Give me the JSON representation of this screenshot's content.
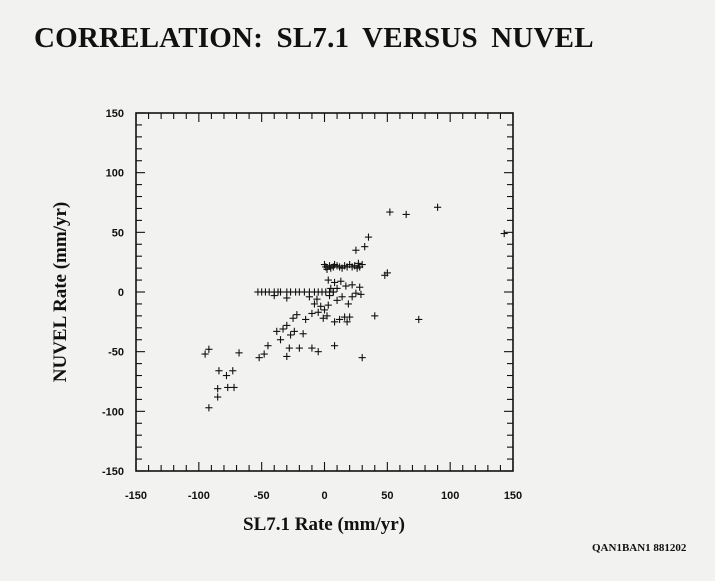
{
  "figure": {
    "title": "CORRELATION:  SL7.1  VERSUS  NUVEL",
    "code": "QAN1BAN1 881202"
  },
  "chart_data": {
    "type": "scatter",
    "title": "CORRELATION:  SL7.1  VERSUS  NUVEL",
    "xlabel": "SL7.1 Rate (mm/yr)",
    "ylabel": "NUVEL Rate (mm/yr)",
    "xlim": [
      -150,
      150
    ],
    "ylim": [
      -150,
      150
    ],
    "xticks": [
      -150,
      -100,
      -50,
      0,
      50,
      100,
      150
    ],
    "yticks": [
      -150,
      -100,
      -50,
      0,
      50,
      100,
      150
    ],
    "xtick_labels": [
      "-150",
      "-100",
      "-50",
      "0",
      "50",
      "100",
      "150"
    ],
    "ytick_labels": [
      "-150",
      "-100",
      "-50",
      "0",
      "50",
      "100",
      "150"
    ],
    "minor_tick_step": 10,
    "grid": false,
    "marker": "plus",
    "color": "#111111",
    "points": [
      [
        -92,
        -97
      ],
      [
        -85,
        -88
      ],
      [
        -85,
        -81
      ],
      [
        -77,
        -80
      ],
      [
        -72,
        -80
      ],
      [
        -78,
        -70
      ],
      [
        -73,
        -66
      ],
      [
        -84,
        -66
      ],
      [
        -95,
        -52
      ],
      [
        -92,
        -48
      ],
      [
        -68,
        -51
      ],
      [
        -48,
        -52
      ],
      [
        -45,
        -45
      ],
      [
        -52,
        -55
      ],
      [
        -53,
        0
      ],
      [
        -50,
        0
      ],
      [
        -47,
        0
      ],
      [
        -44,
        0
      ],
      [
        -40,
        0
      ],
      [
        -37,
        0
      ],
      [
        -35,
        0
      ],
      [
        -30,
        0
      ],
      [
        -27,
        0
      ],
      [
        -23,
        0
      ],
      [
        -20,
        0
      ],
      [
        -16,
        0
      ],
      [
        -12,
        0
      ],
      [
        -8,
        0
      ],
      [
        -5,
        0
      ],
      [
        -2,
        0
      ],
      [
        1,
        0
      ],
      [
        4,
        0
      ],
      [
        7,
        0
      ],
      [
        -40,
        -3
      ],
      [
        -30,
        -5
      ],
      [
        -12,
        -4
      ],
      [
        -6,
        -6
      ],
      [
        -8,
        -10
      ],
      [
        -3,
        -12
      ],
      [
        3,
        -11
      ],
      [
        0,
        -15
      ],
      [
        -5,
        -17
      ],
      [
        2,
        -20
      ],
      [
        -1,
        -22
      ],
      [
        -10,
        -18
      ],
      [
        -15,
        -23
      ],
      [
        -22,
        -19
      ],
      [
        -25,
        -22
      ],
      [
        -30,
        -28
      ],
      [
        -33,
        -31
      ],
      [
        -38,
        -33
      ],
      [
        -35,
        -40
      ],
      [
        -27,
        -36
      ],
      [
        -24,
        -33
      ],
      [
        -17,
        -35
      ],
      [
        -28,
        -47
      ],
      [
        -30,
        -54
      ],
      [
        -20,
        -47
      ],
      [
        -10,
        -47
      ],
      [
        -5,
        -50
      ],
      [
        8,
        -45
      ],
      [
        8,
        -25
      ],
      [
        12,
        -23
      ],
      [
        16,
        -21
      ],
      [
        20,
        -21
      ],
      [
        18,
        -25
      ],
      [
        4,
        -3
      ],
      [
        7,
        0
      ],
      [
        10,
        -7
      ],
      [
        14,
        -4
      ],
      [
        19,
        -10
      ],
      [
        22,
        -4
      ],
      [
        25,
        -1
      ],
      [
        29,
        -2
      ],
      [
        28,
        4
      ],
      [
        22,
        6
      ],
      [
        17,
        5
      ],
      [
        13,
        9
      ],
      [
        10,
        3
      ],
      [
        8,
        8
      ],
      [
        3,
        10
      ],
      [
        5,
        3
      ],
      [
        0,
        23
      ],
      [
        1,
        21
      ],
      [
        2,
        19
      ],
      [
        4,
        22
      ],
      [
        5,
        20
      ],
      [
        7,
        21
      ],
      [
        8,
        23
      ],
      [
        10,
        22
      ],
      [
        12,
        21
      ],
      [
        14,
        20
      ],
      [
        16,
        22
      ],
      [
        18,
        21
      ],
      [
        20,
        23
      ],
      [
        22,
        21
      ],
      [
        24,
        22
      ],
      [
        26,
        20
      ],
      [
        28,
        21
      ],
      [
        30,
        23
      ],
      [
        27,
        24
      ],
      [
        25,
        35
      ],
      [
        32,
        38
      ],
      [
        35,
        46
      ],
      [
        48,
        14
      ],
      [
        50,
        16
      ],
      [
        40,
        -20
      ],
      [
        30,
        -55
      ],
      [
        75,
        -23
      ],
      [
        52,
        67
      ],
      [
        65,
        65
      ],
      [
        90,
        71
      ],
      [
        143,
        49
      ]
    ]
  }
}
